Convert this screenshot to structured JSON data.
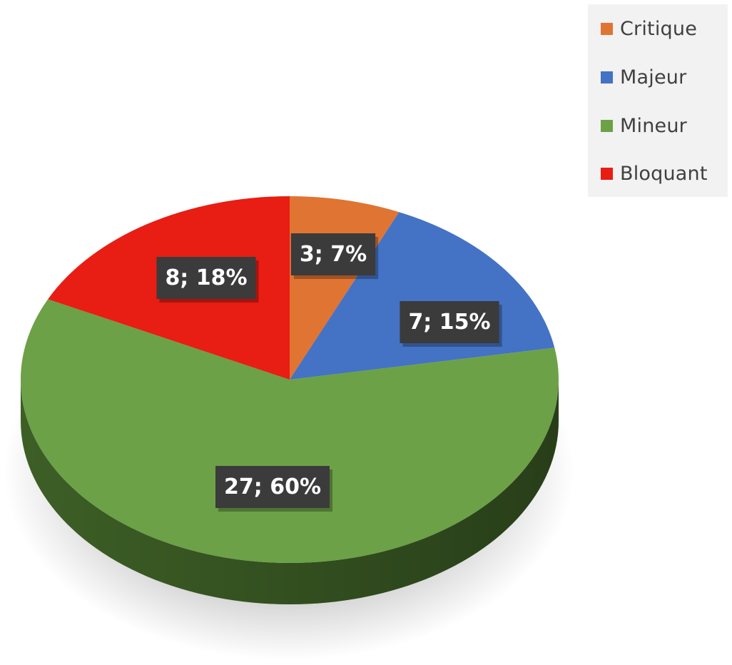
{
  "chart_data": {
    "type": "pie",
    "title": "",
    "legend_position": "top-right",
    "start_angle_deg": 90,
    "direction": "clockwise",
    "slices": [
      {
        "name": "Critique",
        "value": 3,
        "percent": "7%",
        "label": "3; 7%",
        "color": "#e07433",
        "side_color": "#8f4620"
      },
      {
        "name": "Majeur",
        "value": 7,
        "percent": "15%",
        "label": "7; 15%",
        "color": "#4472c4",
        "side_color": "#2a4a80"
      },
      {
        "name": "Mineur",
        "value": 27,
        "percent": "60%",
        "label": "27; 60%",
        "color": "#6ca147",
        "side_color": "#3d5f26"
      },
      {
        "name": "Bloquant",
        "value": 8,
        "percent": "18%",
        "label": "8; 18%",
        "color": "#e81d14",
        "side_color": "#8e120c"
      }
    ]
  }
}
